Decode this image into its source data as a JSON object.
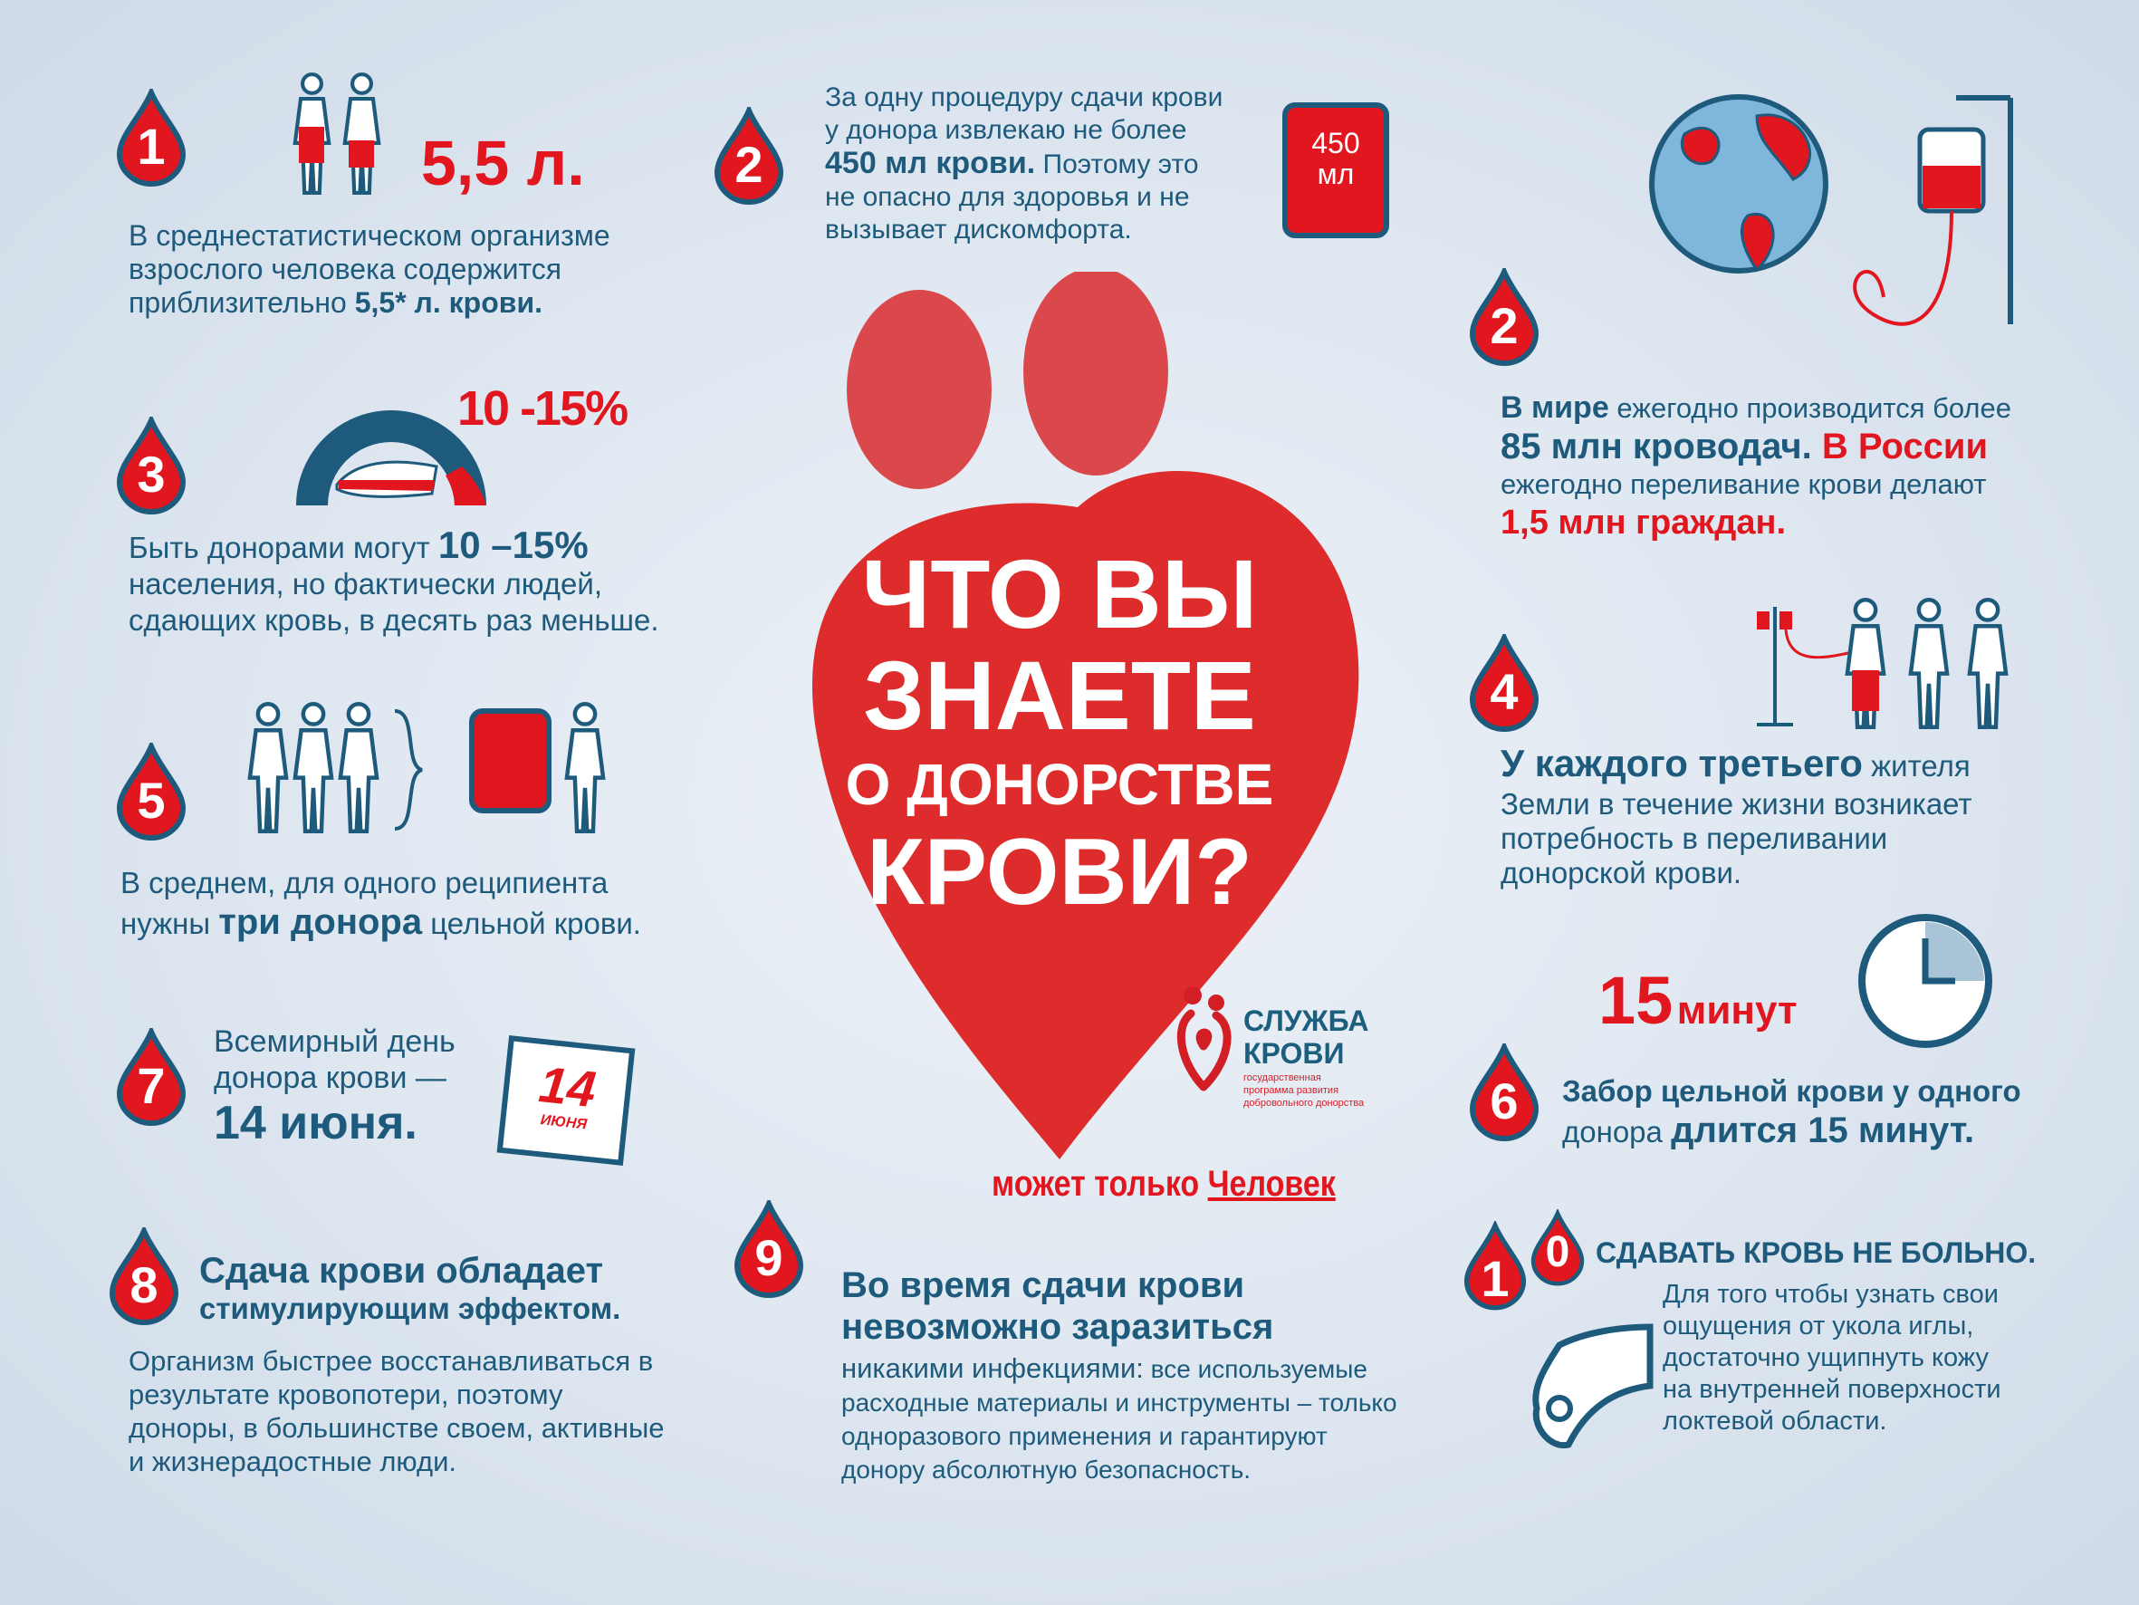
{
  "colors": {
    "blue": "#1d5a7c",
    "red": "#e1161f",
    "background": "#dfe7f0"
  },
  "title": {
    "line1": "ЧТО ВЫ",
    "line2": "ЗНАЕТЕ",
    "line3": "О ДОНОРСТВЕ",
    "line4": "КРОВИ?"
  },
  "logo": {
    "name1": "СЛУЖБА",
    "name2": "КРОВИ",
    "sub1": "государственная",
    "sub2": "программа развития",
    "sub3": "добровольного донорства"
  },
  "slogan": {
    "pre": "может только ",
    "word": "Человек"
  },
  "facts": {
    "f1": {
      "num": "1",
      "stat": "5,5 л.",
      "l1": "В среднестатистическом организме",
      "l2": "взрослого человека содержится",
      "l3a": "приблизительно ",
      "l3b": "5,5* л. крови."
    },
    "f2": {
      "num": "2",
      "l1": "За одну процедуру сдачи крови",
      "l2": "у донора извлекаю не более",
      "l3a": "450 мл крови.",
      "l3b": " Поэтому это",
      "l4": "не опасно для здоровья и не",
      "l5": "вызывает дискомфорта.",
      "bag1": "450",
      "bag2": "мл"
    },
    "f2b": {
      "num": "2",
      "l1a": "В мире",
      "l1b": " ежегодно производится более",
      "l2a": "85 млн кроводач.",
      "l2b": " В России",
      "l3": "ежегодно переливание крови делают",
      "l4": "1,5 млн граждан."
    },
    "f3": {
      "num": "3",
      "stat": "10 -15%",
      "l1a": "Быть донорами могут ",
      "l1b": "10 –15%",
      "l2": "населения, но фактически людей,",
      "l3": "сдающих кровь, в десять раз меньше."
    },
    "f4": {
      "num": "4",
      "l1a": "У каждого третьего",
      "l1b": " жителя",
      "l2": "Земли в течение жизни возникает",
      "l3": "потребность в переливании",
      "l4": "донорской крови."
    },
    "f5": {
      "num": "5",
      "l1": "В среднем, для одного реципиента",
      "l2a": "нужны ",
      "l2b": "три донора",
      "l2c": " цельной крови."
    },
    "f6": {
      "num": "6",
      "stat_num": "15",
      "stat_unit": "минут",
      "l1": "Забор цельной крови у одного",
      "l2a": "донора ",
      "l2b": "длится 15 минут."
    },
    "f7": {
      "num": "7",
      "l1": "Всемирный день",
      "l2": "донора крови —",
      "l3": "14 июня.",
      "cal_day": "14",
      "cal_month": "ИЮНЯ"
    },
    "f8": {
      "num": "8",
      "h1": "Сдача крови обладает",
      "h2": "стимулирующим эффектом.",
      "l1": "Организм быстрее восстанавливаться в",
      "l2": "результате кровопотери, поэтому",
      "l3": "доноры, в большинстве своем, активные",
      "l4": "и жизнерадостные люди."
    },
    "f9": {
      "num": "9",
      "h1": "Во время сдачи крови",
      "h2": "невозможно заразиться",
      "l1a": "никакими инфекциями:",
      "l1b": " все используемые",
      "l2": "расходные материалы и инструменты – только",
      "l3": "одноразового применения и гарантируют",
      "l4": "донору абсолютную безопасность."
    },
    "f10": {
      "num1": "1",
      "num2": "0",
      "h": "СДАВАТЬ КРОВЬ НЕ БОЛЬНО.",
      "l1": "Для того чтобы узнать свои",
      "l2": "ощущения от укола иглы,",
      "l3": "достаточно ущипнуть кожу",
      "l4": "на внутренней поверхности",
      "l5": "локтевой области."
    }
  }
}
